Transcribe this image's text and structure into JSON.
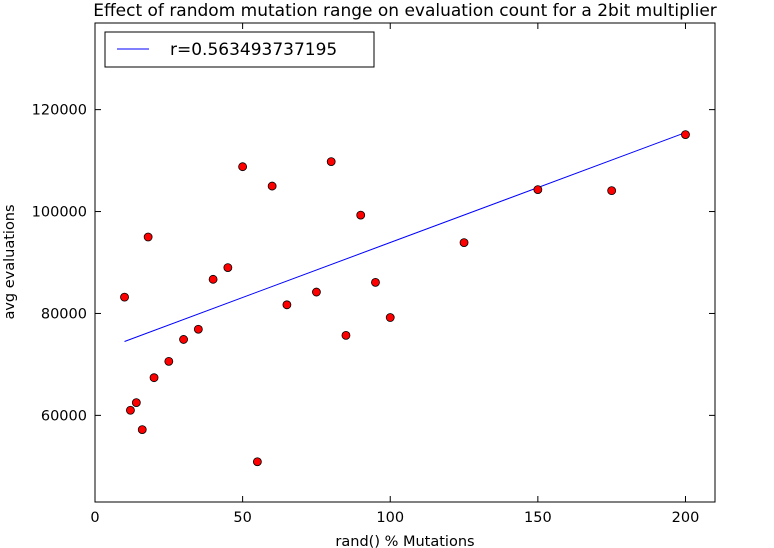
{
  "chart_data": {
    "type": "scatter",
    "title": "Effect of random mutation range on evaluation count for a 2bit multiplier",
    "xlabel": "rand() % Mutations",
    "ylabel": "avg evaluations",
    "xlim": [
      0,
      210
    ],
    "ylim": [
      43000,
      137000
    ],
    "x_ticks": [
      0,
      50,
      100,
      150,
      200
    ],
    "y_ticks": [
      60000,
      80000,
      100000,
      120000
    ],
    "x_tick_labels": [
      "0",
      "50",
      "100",
      "150",
      "200"
    ],
    "y_tick_labels": [
      "60000",
      "80000",
      "100000",
      "120000"
    ],
    "grid": false,
    "legend_position": "top-left",
    "points": [
      {
        "x": 10,
        "y": 83200
      },
      {
        "x": 12,
        "y": 61000
      },
      {
        "x": 14,
        "y": 62500
      },
      {
        "x": 16,
        "y": 57200
      },
      {
        "x": 18,
        "y": 95000
      },
      {
        "x": 20,
        "y": 67400
      },
      {
        "x": 25,
        "y": 70600
      },
      {
        "x": 30,
        "y": 74900
      },
      {
        "x": 35,
        "y": 76900
      },
      {
        "x": 40,
        "y": 86700
      },
      {
        "x": 45,
        "y": 89000
      },
      {
        "x": 50,
        "y": 108800
      },
      {
        "x": 55,
        "y": 50900
      },
      {
        "x": 60,
        "y": 105000
      },
      {
        "x": 65,
        "y": 81700
      },
      {
        "x": 75,
        "y": 84200
      },
      {
        "x": 80,
        "y": 109800
      },
      {
        "x": 85,
        "y": 75700
      },
      {
        "x": 90,
        "y": 99300
      },
      {
        "x": 95,
        "y": 86100
      },
      {
        "x": 100,
        "y": 79200
      },
      {
        "x": 125,
        "y": 93900
      },
      {
        "x": 150,
        "y": 104300
      },
      {
        "x": 175,
        "y": 104100
      },
      {
        "x": 200,
        "y": 115100
      }
    ],
    "marker_color": "#ff0000",
    "marker_edge_color": "#000000",
    "fit_line": {
      "label": "r=0.563493737195",
      "color": "#0000ff",
      "x": [
        10,
        200
      ],
      "y": [
        74500,
        115500
      ]
    }
  }
}
